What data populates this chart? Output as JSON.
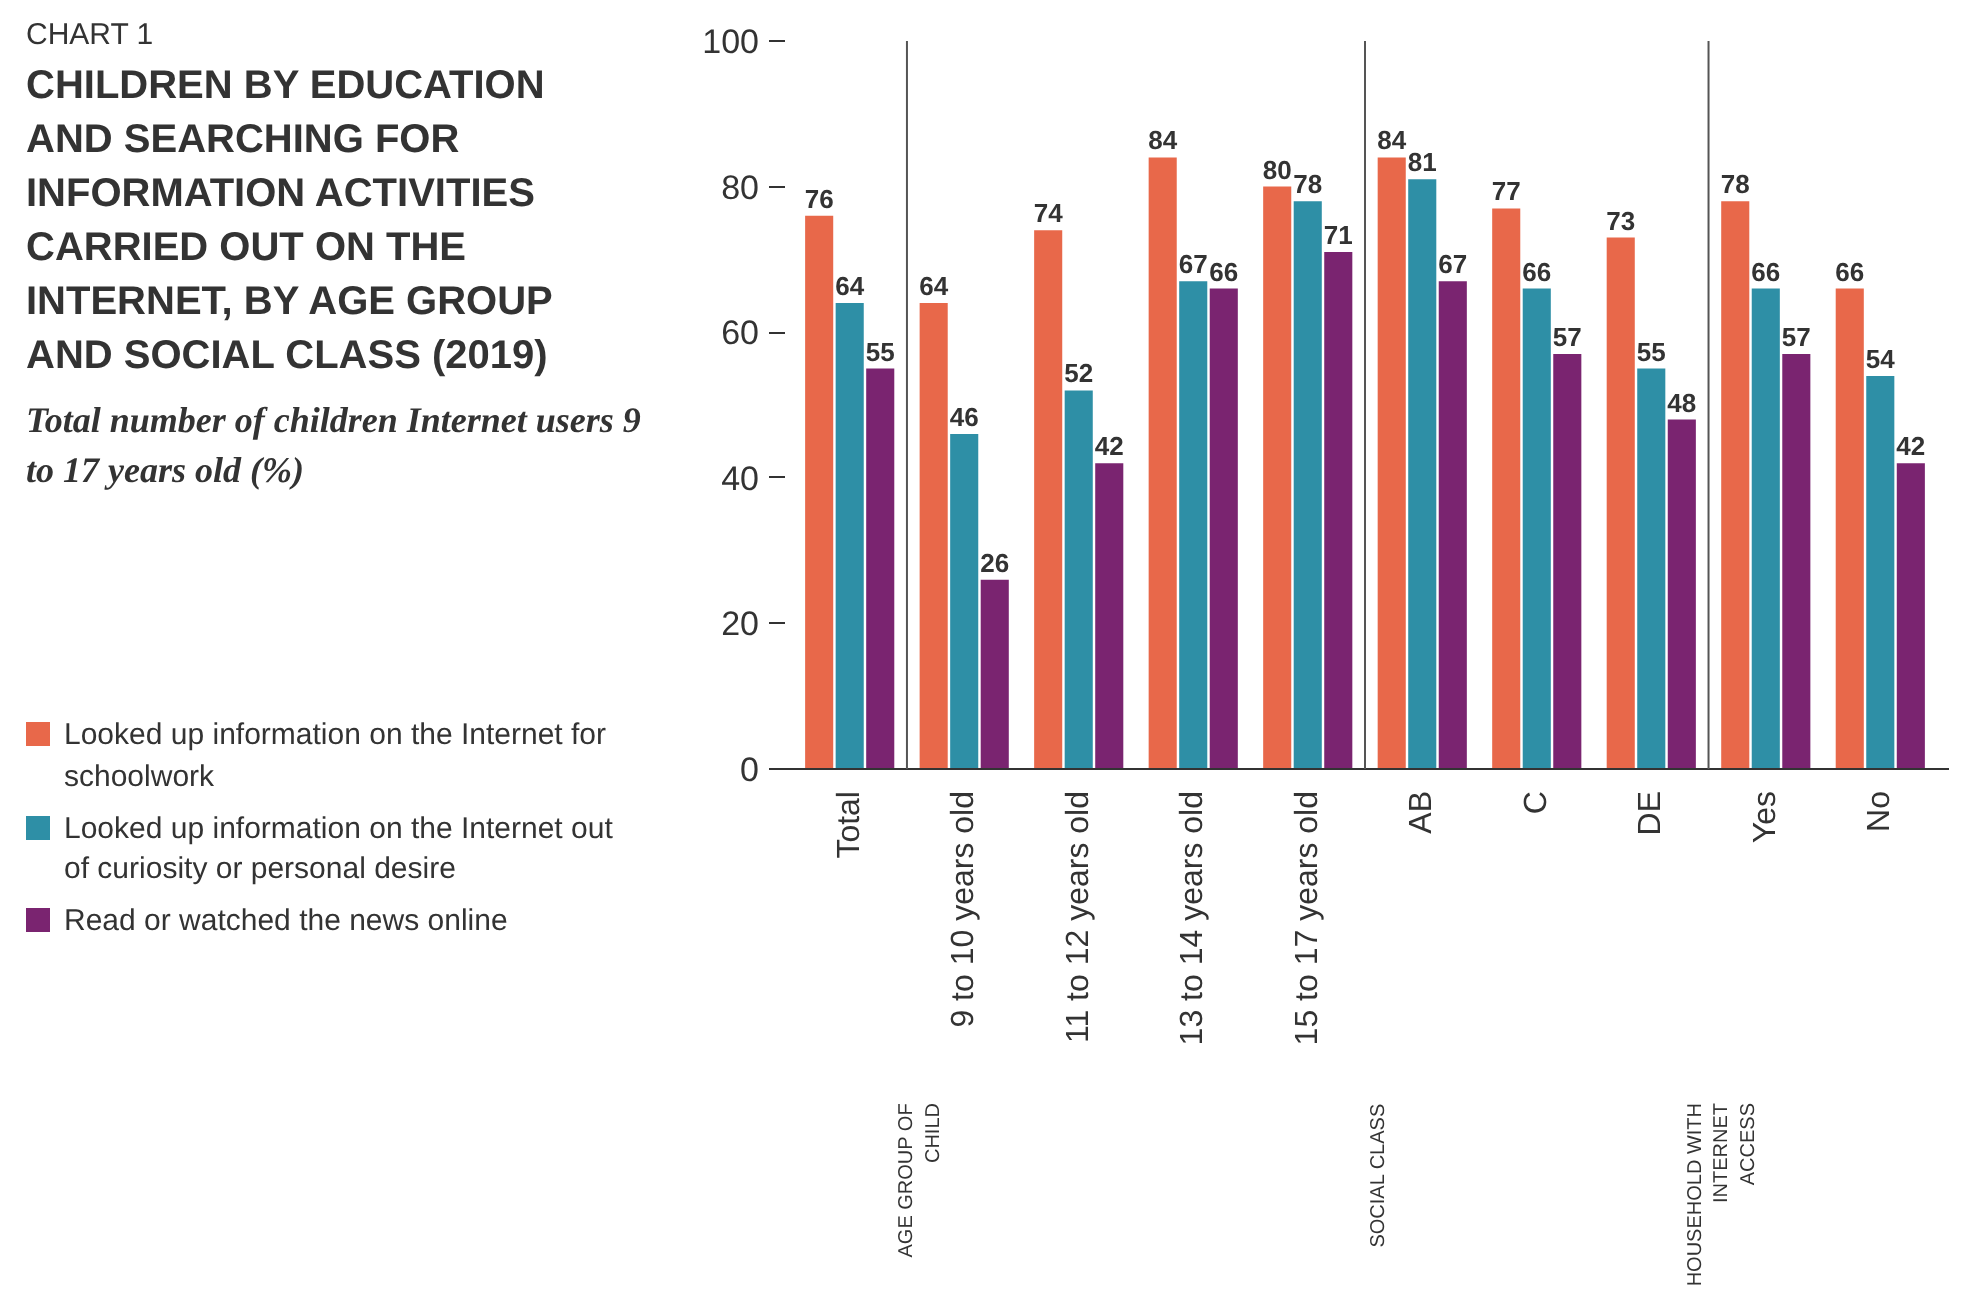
{
  "chart_data": {
    "type": "bar",
    "title": "CHILDREN BY EDUCATION AND SEARCHING FOR INFORMATION ACTIVITIES CARRIED OUT ON THE INTERNET, BY AGE GROUP AND SOCIAL CLASS (2019)",
    "subtitle": "Total number of children Internet users 9 to 17 years old (%)",
    "categories": [
      "Total",
      "9 to 10 years old",
      "11 to 12 years old",
      "13 to 14 years old",
      "15 to 17 years old",
      "AB",
      "C",
      "DE",
      "Yes",
      "No"
    ],
    "series": [
      {
        "name": "Looked up information on the Internet for schoolwork",
        "color": "#e8684a",
        "values": [
          76,
          64,
          74,
          84,
          80,
          84,
          77,
          73,
          78,
          66
        ]
      },
      {
        "name": "Looked up information on the Internet out of curiosity or personal desire",
        "color": "#2e8fa6",
        "values": [
          64,
          46,
          52,
          67,
          78,
          81,
          66,
          55,
          66,
          54
        ]
      },
      {
        "name": "Read or watched the news online",
        "color": "#7a2470",
        "values": [
          55,
          26,
          42,
          66,
          71,
          67,
          57,
          48,
          57,
          42
        ]
      }
    ],
    "ylim": [
      0,
      100
    ],
    "yticks": [
      0,
      20,
      40,
      60,
      80,
      100
    ],
    "data_labels": true,
    "grid": false,
    "legend": "bottom left",
    "annotations": [
      "CHART 1",
      "AGE GROUP OF CHILD",
      "SOCIAL CLASS",
      "HOUSEHOLD WITH INTERNET ACCESS"
    ]
  }
}
